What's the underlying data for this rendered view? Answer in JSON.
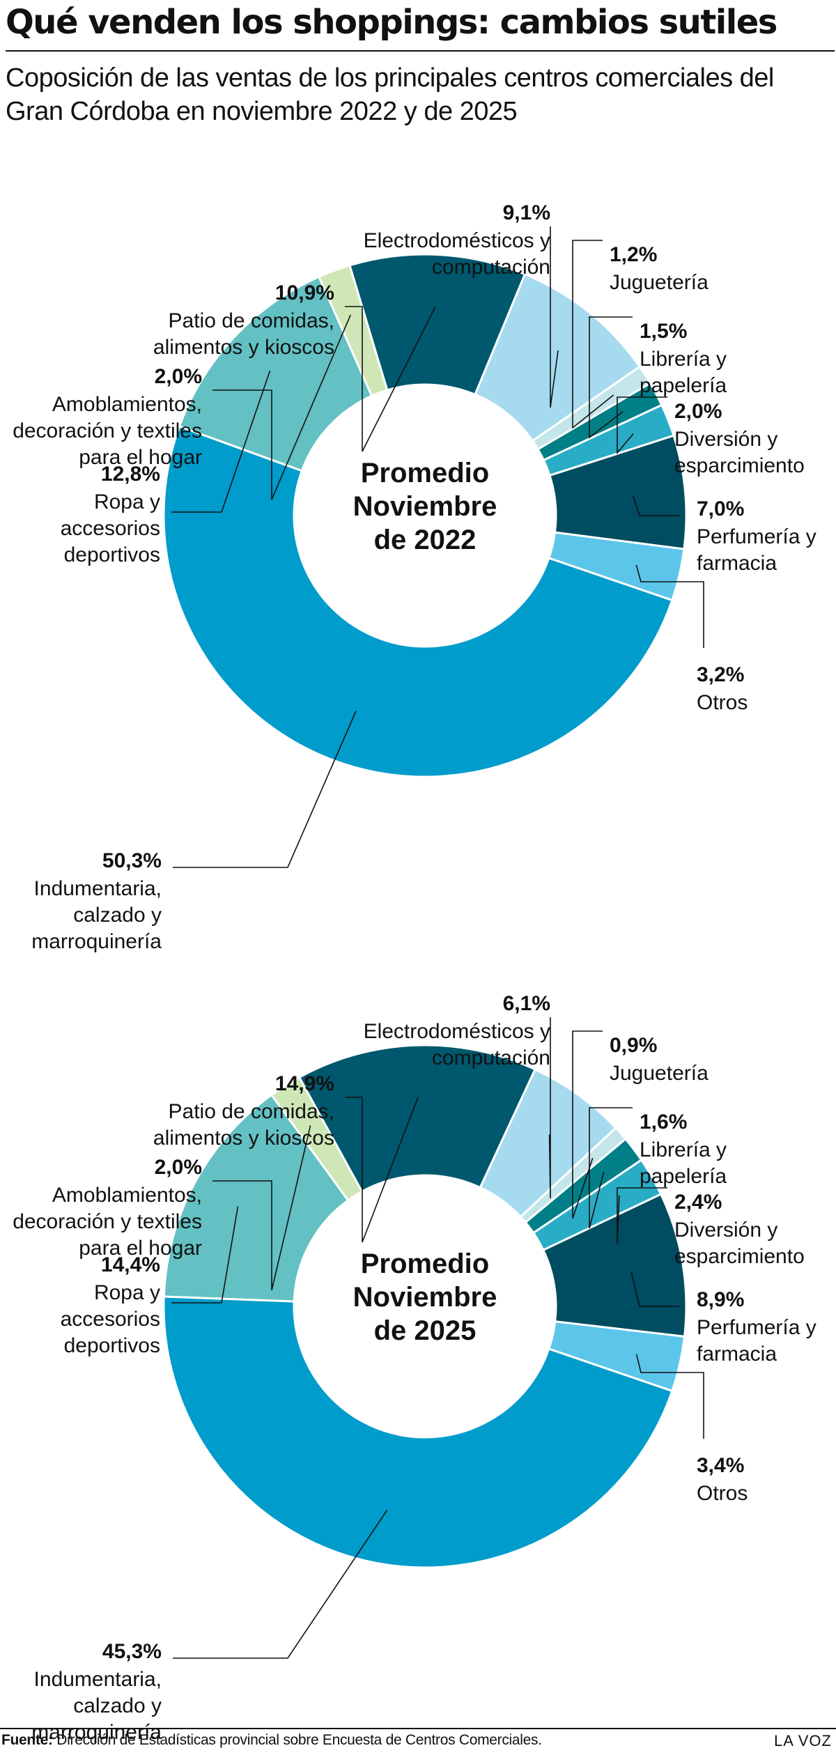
{
  "title": "Qué venden los shoppings: cambios sutiles",
  "subtitle": "Coposición de las ventas de los principales centros comerciales del Gran Córdoba en noviembre 2022 y de 2025",
  "footer": {
    "source_label": "Fuente:",
    "source_text": "Dirección de Estadísticas provincial sobre Encuesta de Centros Comerciales.",
    "brand": "LA VOZ"
  },
  "chart_data": [
    {
      "type": "pie",
      "center_label": [
        "Promedio",
        "Noviembre",
        "de 2022"
      ],
      "slices": [
        {
          "value_label": "50,3%",
          "value": 50.3,
          "label": [
            "Indumentaria,",
            "calzado y",
            "marroquinería"
          ],
          "color": "#009ccb"
        },
        {
          "value_label": "12,8%",
          "value": 12.8,
          "label": [
            "Ropa y",
            "accesorios",
            "deportivos"
          ],
          "color": "#63c0c3"
        },
        {
          "value_label": "2,0%",
          "value": 2.0,
          "label": [
            "Amoblamientos,",
            "decoración y textiles",
            "para el hogar"
          ],
          "color": "#cfe6b6"
        },
        {
          "value_label": "10,9%",
          "value": 10.9,
          "label": [
            "Patio de comidas,",
            "alimentos y kioscos"
          ],
          "color": "#00586e"
        },
        {
          "value_label": "9,1%",
          "value": 9.1,
          "label": [
            "Electrodomésticos y",
            "computación"
          ],
          "color": "#a6dbef"
        },
        {
          "value_label": "1,2%",
          "value": 1.2,
          "label": [
            "Juguetería"
          ],
          "color": "#c4e5ea"
        },
        {
          "value_label": "1,5%",
          "value": 1.5,
          "label": [
            "Librería y",
            "papelería"
          ],
          "color": "#007f87"
        },
        {
          "value_label": "2,0%",
          "value": 2.0,
          "label": [
            "Diversión y",
            "esparcimiento"
          ],
          "color": "#29acc6"
        },
        {
          "value_label": "7,0%",
          "value": 7.0,
          "label": [
            "Perfumería y",
            "farmacia"
          ],
          "color": "#004c60"
        },
        {
          "value_label": "3,2%",
          "value": 3.2,
          "label": [
            "Otros"
          ],
          "color": "#5cc6ea"
        }
      ]
    },
    {
      "type": "pie",
      "center_label": [
        "Promedio",
        "Noviembre",
        "de 2025"
      ],
      "slices": [
        {
          "value_label": "45,3%",
          "value": 45.3,
          "label": [
            "Indumentaria,",
            "calzado y",
            "marroquinería"
          ],
          "color": "#009ccb"
        },
        {
          "value_label": "14,4%",
          "value": 14.4,
          "label": [
            "Ropa y",
            "accesorios",
            "deportivos"
          ],
          "color": "#63c0c3"
        },
        {
          "value_label": "2,0%",
          "value": 2.0,
          "label": [
            "Amoblamientos,",
            "decoración y textiles",
            "para el hogar"
          ],
          "color": "#cfe6b6"
        },
        {
          "value_label": "14,9%",
          "value": 14.9,
          "label": [
            "Patio de comidas,",
            "alimentos y kioscos"
          ],
          "color": "#00586e"
        },
        {
          "value_label": "6,1%",
          "value": 6.1,
          "label": [
            "Electrodomésticos y",
            "computación"
          ],
          "color": "#a6dbef"
        },
        {
          "value_label": "0,9%",
          "value": 0.9,
          "label": [
            "Juguetería"
          ],
          "color": "#c4e5ea"
        },
        {
          "value_label": "1,6%",
          "value": 1.6,
          "label": [
            "Librería y",
            "papelería"
          ],
          "color": "#007f87"
        },
        {
          "value_label": "2,4%",
          "value": 2.4,
          "label": [
            "Diversión y",
            "esparcimiento"
          ],
          "color": "#29acc6"
        },
        {
          "value_label": "8,9%",
          "value": 8.9,
          "label": [
            "Perfumería y",
            "farmacia"
          ],
          "color": "#004c60"
        },
        {
          "value_label": "3,4%",
          "value": 3.4,
          "label": [
            "Otros"
          ],
          "color": "#5cc6ea"
        }
      ]
    }
  ]
}
